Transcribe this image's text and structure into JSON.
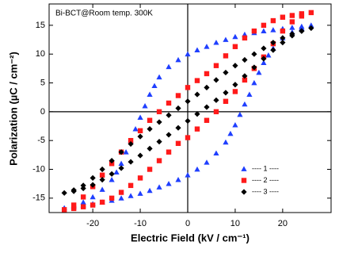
{
  "chart_data": {
    "type": "scatter",
    "annotation": "Bi-BCT@Room temp. 300K",
    "x_label": "Electric Field  (kV / cm⁻¹)",
    "y_label": "Polarization  (µC / cm⁻²)",
    "xlim": [
      -29.2,
      30.2
    ],
    "xticks": [
      -20,
      -10,
      0,
      10,
      20
    ],
    "ylim": [
      -17.5,
      18.7
    ],
    "yticks": [
      -15,
      -10,
      -5,
      0,
      5,
      10,
      15
    ],
    "legend": "lower right",
    "series": [
      {
        "name": "---- 1 ----",
        "color": "#1f3fff",
        "marker": "triangle",
        "x": [
          26,
          24,
          22,
          20,
          18,
          16,
          14,
          12,
          10,
          8,
          6,
          4,
          2,
          0,
          -2,
          -4,
          -6,
          -7,
          -8,
          -9,
          -10,
          -11,
          -12,
          -13,
          -14,
          -15,
          -16,
          -18,
          -20,
          -22,
          -24,
          -26,
          -24,
          -22,
          -20,
          -18,
          -16,
          -14,
          -12,
          -10,
          -8,
          -6,
          -4,
          -2,
          0,
          2,
          4,
          6,
          8,
          9,
          10,
          11,
          12,
          13,
          14,
          15,
          16,
          17,
          18,
          20,
          22,
          24
        ],
        "values": [
          15,
          14.8,
          14.6,
          14.4,
          14.2,
          14,
          13.7,
          13.4,
          13,
          12.5,
          12,
          11.3,
          10.7,
          10,
          9,
          7.8,
          6,
          4.5,
          3,
          1,
          -1,
          -3,
          -5,
          -7,
          -9,
          -10.5,
          -11.8,
          -13.5,
          -14.8,
          -15.7,
          -16.3,
          -16.7,
          -16.5,
          -16.2,
          -16,
          -15.7,
          -15.4,
          -15,
          -14.6,
          -14.2,
          -13.7,
          -13.1,
          -12.5,
          -11.8,
          -11,
          -10,
          -8.8,
          -7.2,
          -5.3,
          -3.8,
          -2.3,
          -0.5,
          1.3,
          3,
          5,
          6.8,
          8.5,
          9.8,
          11,
          12.8,
          13.8,
          14.5
        ]
      },
      {
        "name": "---- 2 ----",
        "color": "#ff1a1a",
        "marker": "square",
        "x": [
          26,
          24,
          22,
          20,
          18,
          16,
          14,
          12,
          10,
          8,
          6,
          4,
          2,
          0,
          -2,
          -4,
          -6,
          -8,
          -10,
          -12,
          -14,
          -16,
          -18,
          -20,
          -22,
          -24,
          -26,
          -24,
          -22,
          -20,
          -18,
          -16,
          -14,
          -12,
          -10,
          -8,
          -6,
          -4,
          -2,
          0,
          2,
          4,
          6,
          8,
          10,
          12,
          14,
          16,
          18,
          20,
          22,
          24
        ],
        "values": [
          17.2,
          17,
          16.7,
          16.4,
          15.8,
          15,
          14,
          12.8,
          11.3,
          9.7,
          8,
          6.6,
          5.4,
          4.2,
          2.8,
          1.5,
          0,
          -1.5,
          -3.3,
          -5,
          -7,
          -9,
          -11,
          -13,
          -14.8,
          -16.2,
          -17,
          -16.8,
          -16.5,
          -16.2,
          -15.7,
          -15,
          -14,
          -12.8,
          -11.5,
          -10,
          -8.5,
          -7,
          -5.5,
          -4.5,
          -3,
          -1.5,
          0,
          1.8,
          3.5,
          5.5,
          7.5,
          9.5,
          11.8,
          14,
          15.6,
          16.6
        ]
      },
      {
        "name": "---- 3 ----",
        "color": "#000000",
        "marker": "diamond",
        "x": [
          26,
          24,
          22,
          20,
          18,
          16,
          14,
          12,
          10,
          8,
          6,
          4,
          2,
          0,
          -2,
          -4,
          -6,
          -8,
          -10,
          -12,
          -14,
          -16,
          -18,
          -20,
          -22,
          -24,
          -26,
          -24,
          -22,
          -20,
          -18,
          -16,
          -14,
          -12,
          -10,
          -8,
          -6,
          -4,
          -2,
          0,
          2,
          4,
          6,
          8,
          10,
          12,
          14,
          16,
          18,
          20,
          22,
          24
        ],
        "values": [
          14.5,
          14,
          13.5,
          12.8,
          12,
          11,
          10,
          9,
          8,
          6.8,
          5.5,
          4.2,
          3,
          1.8,
          0.6,
          -0.6,
          -1.8,
          -3,
          -4.3,
          -5.6,
          -7,
          -8.5,
          -10,
          -11.5,
          -12.8,
          -13.6,
          -14.1,
          -13.8,
          -13.3,
          -12.7,
          -11.8,
          -10.8,
          -9.8,
          -8.7,
          -7.6,
          -6.4,
          -5.2,
          -4,
          -2.8,
          -1.6,
          -0.4,
          0.8,
          2,
          3.3,
          4.7,
          6.2,
          7.7,
          9.2,
          10.7,
          12,
          13.2,
          14
        ]
      }
    ]
  }
}
